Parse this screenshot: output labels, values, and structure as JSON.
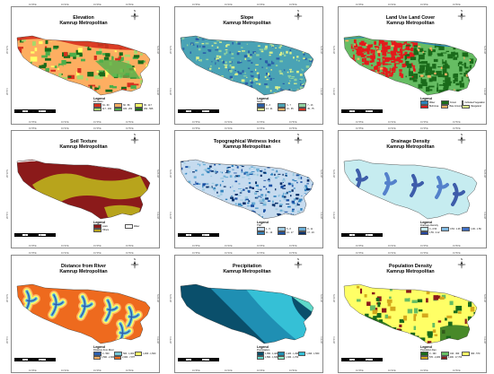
{
  "panels": [
    {
      "title_line1": "Elevation",
      "title_line2": "Kamrup Metropolitan",
      "legend_title": "Legend",
      "legend_subtitle": "Elevation",
      "legend_items": [
        {
          "label": "34 - 60",
          "color": "#d7301f"
        },
        {
          "label": "60 - 86",
          "color": "#fdae61"
        },
        {
          "label": "86 - 117",
          "color": "#ffff66"
        },
        {
          "label": "117 - 182",
          "color": "#a6d96a"
        },
        {
          "label": "182 - 262",
          "color": "#4daf4a"
        },
        {
          "label": "262 - 506",
          "color": "#1a6b1a"
        }
      ]
    },
    {
      "title_line1": "Slope",
      "title_line2": "Kamrup Metropolitan",
      "legend_title": "Legend",
      "legend_subtitle": "Slope",
      "legend_items": [
        {
          "label": "0 - 3",
          "color": "#2a5fa8"
        },
        {
          "label": "3 - 7",
          "color": "#4aa3b5"
        },
        {
          "label": "7 - 13",
          "color": "#8fd19e"
        },
        {
          "label": "13 - 21",
          "color": "#d9ef8b"
        },
        {
          "label": "21 - 35",
          "color": "#fdae61"
        },
        {
          "label": "35 - 75",
          "color": "#d7301f"
        }
      ]
    },
    {
      "title_line1": "Land Use Land Cover",
      "title_line2": "Kamrup Metropolitan",
      "legend_title": "Legend",
      "legend_subtitle": "",
      "legend_items": [
        {
          "label": "Water",
          "color": "#2b83ba"
        },
        {
          "label": "Forest",
          "color": "#1a6b1a"
        },
        {
          "label": "Cultivated Vegetation",
          "color": "#66bd63"
        },
        {
          "label": "Built Area",
          "color": "#e41a1c"
        },
        {
          "label": "Bare Ground",
          "color": "#fdae61"
        },
        {
          "label": "Rangeland",
          "color": "#d9ef8b"
        }
      ]
    },
    {
      "title_line1": "Soil Texture",
      "title_line2": "Kamrup Metropolitan",
      "legend_title": "Legend",
      "legend_subtitle": "",
      "legend_items": [
        {
          "label": "Loam",
          "color": "#8b1a1a"
        },
        {
          "label": "Water",
          "color": "#ffffff"
        },
        {
          "label": "Others",
          "color": "#b8a41c"
        }
      ]
    },
    {
      "title_line1": "Topographical Wetness Index",
      "title_line2": "Kamrup Metropolitan",
      "legend_title": "Legend",
      "legend_subtitle": "TWI",
      "legend_items": [
        {
          "label": "1 - 5",
          "color": "#c6dbef"
        },
        {
          "label": "5 - 8",
          "color": "#9ecae1"
        },
        {
          "label": "8 - 11",
          "color": "#6baed6"
        },
        {
          "label": "11 - 14",
          "color": "#3182bd"
        },
        {
          "label": "14 - 17",
          "color": "#1a4fa3"
        },
        {
          "label": "17 - 24",
          "color": "#08306b"
        }
      ]
    },
    {
      "title_line1": "Drainage Density",
      "title_line2": "Kamrup Metropolitan",
      "legend_title": "Legend",
      "legend_subtitle": "Drainage Density",
      "legend_items": [
        {
          "label": "0 - 0.53",
          "color": "#c6ecf0"
        },
        {
          "label": "0.53 - 1.06",
          "color": "#7fb8e0"
        },
        {
          "label": "1.06 - 1.59",
          "color": "#3f6fc4"
        },
        {
          "label": "1.59 - 2.12",
          "color": "#24449e"
        }
      ]
    },
    {
      "title_line1": "Distance from River",
      "title_line2": "Kamrup Metropolitan",
      "legend_title": "Legend",
      "legend_subtitle": "Distance from River",
      "legend_items": [
        {
          "label": "0 - 500",
          "color": "#2b5fb0"
        },
        {
          "label": "500 - 1,000",
          "color": "#74c7d6"
        },
        {
          "label": "1,000 - 1,500",
          "color": "#ffff66"
        },
        {
          "label": "1,500 - 2,000",
          "color": "#fdae61"
        },
        {
          "label": "2,000 - 7,877",
          "color": "#ee6a1e"
        }
      ]
    },
    {
      "title_line1": "Precipitation",
      "title_line2": "Kamrup Metropolitan",
      "legend_title": "Legend",
      "legend_subtitle": "Precipitation",
      "legend_items": [
        {
          "label": "1,350 - 1,420",
          "color": "#0a4f6b"
        },
        {
          "label": "1,420 - 1,490",
          "color": "#1f8fb3"
        },
        {
          "label": "1,490 - 1,560",
          "color": "#35c0d6"
        },
        {
          "label": "1,560 - 1,630",
          "color": "#5fd8c8"
        },
        {
          "label": "1,630 - 1,700",
          "color": "#8ef0c8"
        }
      ]
    },
    {
      "title_line1": "Population Density",
      "title_line2": "Kamrup Metropolitan",
      "legend_title": "Legend",
      "legend_subtitle": "Population Den",
      "legend_items": [
        {
          "label": "0 - 190",
          "color": "#1a6b1a"
        },
        {
          "label": "190 - 360",
          "color": "#66bd63"
        },
        {
          "label": "360 - 570",
          "color": "#ffff66"
        },
        {
          "label": "570 - 2,200",
          "color": "#d4a81c"
        },
        {
          "label": "2,200 - 17,700",
          "color": "#8b1a1a"
        }
      ]
    }
  ],
  "ticks": {
    "top": [
      "91°35'E",
      "91°40'E",
      "91°45'E",
      "91°50'E"
    ],
    "left": [
      "26°10'N",
      "26°5'N"
    ]
  },
  "scale": {
    "labels": [
      "0",
      "2.5",
      "5",
      "10",
      "15",
      "20 Km"
    ]
  },
  "north": "N"
}
